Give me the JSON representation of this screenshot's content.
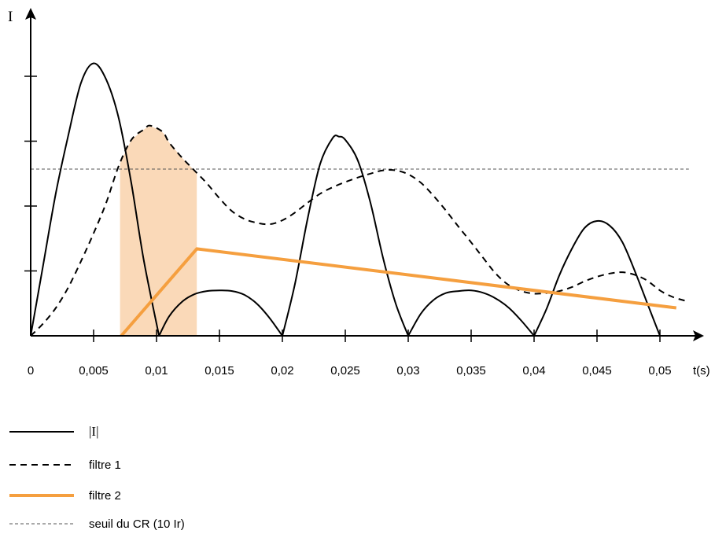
{
  "chart_data": {
    "type": "line",
    "ylabel": "I",
    "xlabel": "t(s)",
    "x_ticks": [
      "0",
      "0,005",
      "0,01",
      "0,015",
      "0,02",
      "0,025",
      "0,03",
      "0,035",
      "0,04",
      "0,045",
      "0,05"
    ],
    "x_tick_values": [
      0,
      0.005,
      0.01,
      0.015,
      0.02,
      0.025,
      0.03,
      0.035,
      0.04,
      0.045,
      0.05
    ],
    "xlim": [
      0,
      0.0535
    ],
    "ylim": [
      0,
      4.2
    ],
    "y_tick_values": [
      1,
      2,
      3,
      4
    ],
    "y_ticks_labeled": false,
    "grid": false,
    "legend_position": "bottom-left",
    "threshold": {
      "name": "seuil du CR (10 Ir)",
      "value": 2.57,
      "color": "#555555",
      "style": "fine-dashed"
    },
    "shaded_region": {
      "x": [
        0.0071,
        0.0132
      ],
      "color": "#fad9b8"
    },
    "series": [
      {
        "name": "|I|",
        "color": "#000000",
        "style": "solid",
        "points": [
          [
            0,
            0
          ],
          [
            0.001,
            1.1
          ],
          [
            0.002,
            2.2
          ],
          [
            0.003,
            3.1
          ],
          [
            0.004,
            3.9
          ],
          [
            0.005,
            4.2
          ],
          [
            0.006,
            3.95
          ],
          [
            0.007,
            3.35
          ],
          [
            0.008,
            2.35
          ],
          [
            0.009,
            1.15
          ],
          [
            0.0102,
            0
          ],
          [
            0.011,
            0.3
          ],
          [
            0.012,
            0.52
          ],
          [
            0.013,
            0.64
          ],
          [
            0.014,
            0.69
          ],
          [
            0.015,
            0.7
          ],
          [
            0.016,
            0.69
          ],
          [
            0.017,
            0.63
          ],
          [
            0.018,
            0.49
          ],
          [
            0.019,
            0.27
          ],
          [
            0.02,
            0
          ],
          [
            0.021,
            0.8
          ],
          [
            0.022,
            1.8
          ],
          [
            0.023,
            2.65
          ],
          [
            0.024,
            3.05
          ],
          [
            0.0245,
            3.07
          ],
          [
            0.025,
            3.02
          ],
          [
            0.026,
            2.7
          ],
          [
            0.027,
            2.05
          ],
          [
            0.028,
            1.2
          ],
          [
            0.029,
            0.5
          ],
          [
            0.03,
            0
          ],
          [
            0.031,
            0.34
          ],
          [
            0.032,
            0.55
          ],
          [
            0.033,
            0.66
          ],
          [
            0.034,
            0.69
          ],
          [
            0.035,
            0.7
          ],
          [
            0.036,
            0.66
          ],
          [
            0.037,
            0.57
          ],
          [
            0.038,
            0.43
          ],
          [
            0.039,
            0.23
          ],
          [
            0.04,
            0
          ],
          [
            0.041,
            0.42
          ],
          [
            0.042,
            0.93
          ],
          [
            0.043,
            1.34
          ],
          [
            0.044,
            1.66
          ],
          [
            0.045,
            1.77
          ],
          [
            0.046,
            1.7
          ],
          [
            0.047,
            1.45
          ],
          [
            0.048,
            1.0
          ],
          [
            0.049,
            0.5
          ],
          [
            0.05,
            0
          ]
        ]
      },
      {
        "name": "filtre 1",
        "color": "#000000",
        "style": "dashed",
        "points": [
          [
            0,
            0
          ],
          [
            0.001,
            0.19
          ],
          [
            0.002,
            0.43
          ],
          [
            0.003,
            0.75
          ],
          [
            0.004,
            1.15
          ],
          [
            0.005,
            1.58
          ],
          [
            0.006,
            2.05
          ],
          [
            0.007,
            2.62
          ],
          [
            0.008,
            3.02
          ],
          [
            0.009,
            3.18
          ],
          [
            0.0095,
            3.24
          ],
          [
            0.0105,
            3.14
          ],
          [
            0.011,
            2.98
          ],
          [
            0.012,
            2.75
          ],
          [
            0.013,
            2.55
          ],
          [
            0.014,
            2.35
          ],
          [
            0.015,
            2.12
          ],
          [
            0.016,
            1.92
          ],
          [
            0.017,
            1.8
          ],
          [
            0.018,
            1.74
          ],
          [
            0.019,
            1.72
          ],
          [
            0.02,
            1.78
          ],
          [
            0.021,
            1.9
          ],
          [
            0.022,
            2.05
          ],
          [
            0.023,
            2.19
          ],
          [
            0.024,
            2.29
          ],
          [
            0.025,
            2.37
          ],
          [
            0.026,
            2.44
          ],
          [
            0.027,
            2.5
          ],
          [
            0.028,
            2.55
          ],
          [
            0.029,
            2.55
          ],
          [
            0.03,
            2.49
          ],
          [
            0.031,
            2.36
          ],
          [
            0.032,
            2.16
          ],
          [
            0.033,
            1.93
          ],
          [
            0.034,
            1.68
          ],
          [
            0.035,
            1.44
          ],
          [
            0.036,
            1.19
          ],
          [
            0.037,
            0.95
          ],
          [
            0.038,
            0.78
          ],
          [
            0.039,
            0.69
          ],
          [
            0.04,
            0.65
          ],
          [
            0.041,
            0.66
          ],
          [
            0.042,
            0.69
          ],
          [
            0.043,
            0.75
          ],
          [
            0.044,
            0.84
          ],
          [
            0.045,
            0.91
          ],
          [
            0.046,
            0.96
          ],
          [
            0.047,
            0.98
          ],
          [
            0.048,
            0.94
          ],
          [
            0.049,
            0.85
          ],
          [
            0.05,
            0.7
          ],
          [
            0.051,
            0.6
          ],
          [
            0.052,
            0.54
          ]
        ]
      },
      {
        "name": "filtre 2",
        "color": "#f59f3f",
        "style": "solid-thick",
        "points": [
          [
            0.0072,
            0
          ],
          [
            0.0132,
            1.34
          ],
          [
            0.0513,
            0.43
          ]
        ]
      }
    ]
  }
}
